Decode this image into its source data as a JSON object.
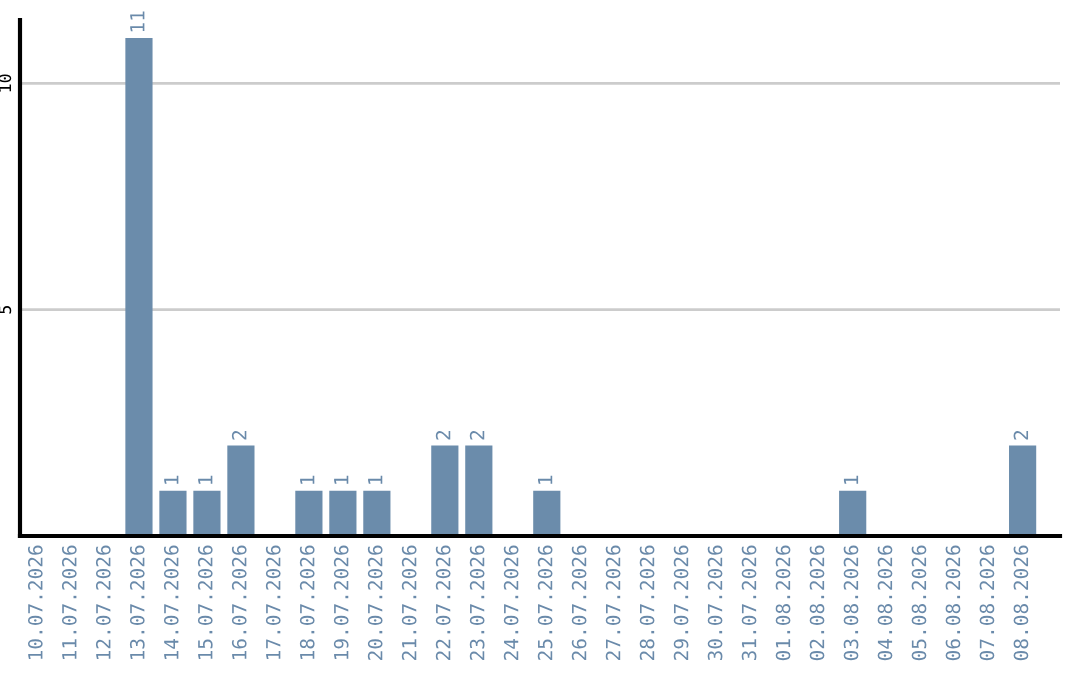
{
  "chart_data": {
    "type": "bar",
    "categories": [
      "10.07.2026",
      "11.07.2026",
      "12.07.2026",
      "13.07.2026",
      "14.07.2026",
      "15.07.2026",
      "16.07.2026",
      "17.07.2026",
      "18.07.2026",
      "19.07.2026",
      "20.07.2026",
      "21.07.2026",
      "22.07.2026",
      "23.07.2026",
      "24.07.2026",
      "25.07.2026",
      "26.07.2026",
      "27.07.2026",
      "28.07.2026",
      "29.07.2026",
      "30.07.2026",
      "31.07.2026",
      "01.08.2026",
      "02.08.2026",
      "03.08.2026",
      "04.08.2026",
      "05.08.2026",
      "06.08.2026",
      "07.08.2026",
      "08.08.2026"
    ],
    "values": [
      0,
      0,
      0,
      11,
      1,
      1,
      2,
      0,
      1,
      1,
      1,
      0,
      2,
      2,
      0,
      1,
      0,
      0,
      0,
      0,
      0,
      0,
      0,
      0,
      1,
      0,
      0,
      0,
      0,
      2
    ],
    "value_labels": [
      null,
      null,
      null,
      "11",
      "1",
      "1",
      "2",
      null,
      "1",
      "1",
      "1",
      null,
      "2",
      "2",
      null,
      "1",
      null,
      null,
      null,
      null,
      null,
      null,
      null,
      null,
      "1",
      null,
      null,
      null,
      null,
      "2"
    ],
    "color": "#6b8cab",
    "ylim": [
      0,
      11.4
    ],
    "yticks": [
      5,
      10
    ],
    "grid": "y",
    "legend": false
  }
}
